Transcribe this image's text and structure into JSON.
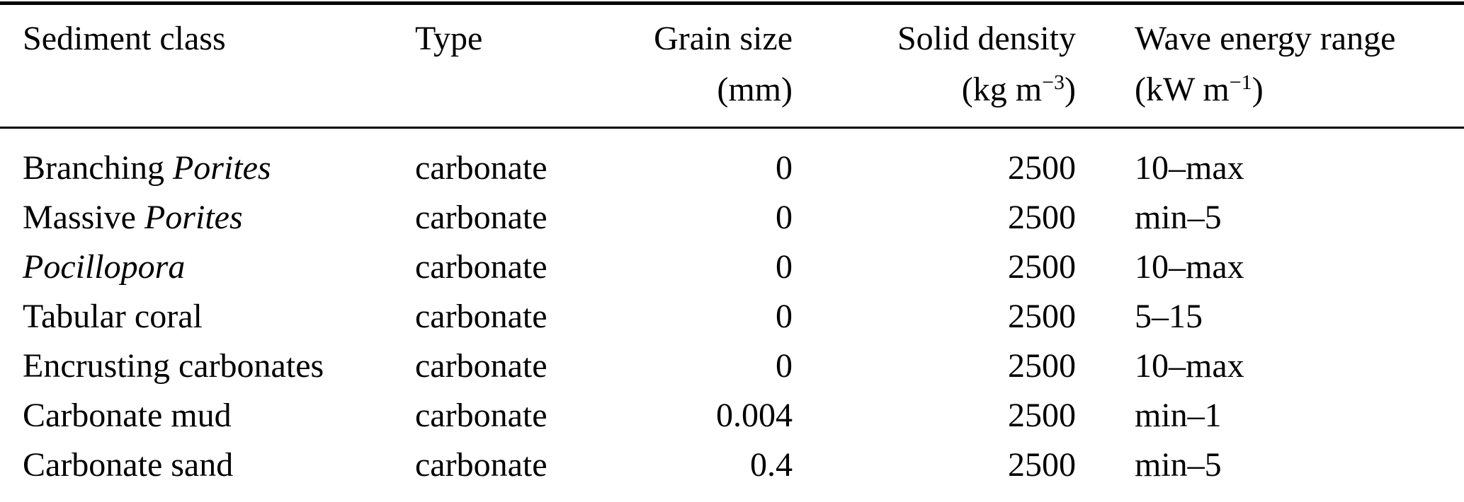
{
  "colors": {
    "text": "#000000",
    "background": "#ffffff",
    "rule": "#000000"
  },
  "table": {
    "header": {
      "sediment_class": "Sediment class",
      "type": "Type",
      "grain_size": {
        "label": "Grain size",
        "unit_prefix": "(mm)",
        "unit_sup": "",
        "unit_suffix": ""
      },
      "solid_density": {
        "label": "Solid density",
        "unit_prefix": "(kg m",
        "unit_sup": "−3",
        "unit_suffix": ")"
      },
      "wave_energy": {
        "label": "Wave energy range",
        "unit_prefix": "(kW m",
        "unit_sup": "−1",
        "unit_suffix": ")"
      }
    },
    "rows": [
      {
        "class_regular": "Branching ",
        "class_italic": "Porites",
        "type": "carbonate",
        "grain_size": "0",
        "solid_density": "2500",
        "wave_energy": "10–max"
      },
      {
        "class_regular": "Massive ",
        "class_italic": "Porites",
        "type": "carbonate",
        "grain_size": "0",
        "solid_density": "2500",
        "wave_energy": "min–5"
      },
      {
        "class_regular": "",
        "class_italic": "Pocillopora",
        "type": "carbonate",
        "grain_size": "0",
        "solid_density": "2500",
        "wave_energy": "10–max"
      },
      {
        "class_regular": "Tabular coral",
        "class_italic": "",
        "type": "carbonate",
        "grain_size": "0",
        "solid_density": "2500",
        "wave_energy": "5–15"
      },
      {
        "class_regular": "Encrusting carbonates",
        "class_italic": "",
        "type": "carbonate",
        "grain_size": "0",
        "solid_density": "2500",
        "wave_energy": "10–max"
      },
      {
        "class_regular": "Carbonate mud",
        "class_italic": "",
        "type": "carbonate",
        "grain_size": "0.004",
        "solid_density": "2500",
        "wave_energy": "min–1"
      },
      {
        "class_regular": "Carbonate sand",
        "class_italic": "",
        "type": "carbonate",
        "grain_size": "0.4",
        "solid_density": "2500",
        "wave_energy": "min–5"
      }
    ]
  }
}
